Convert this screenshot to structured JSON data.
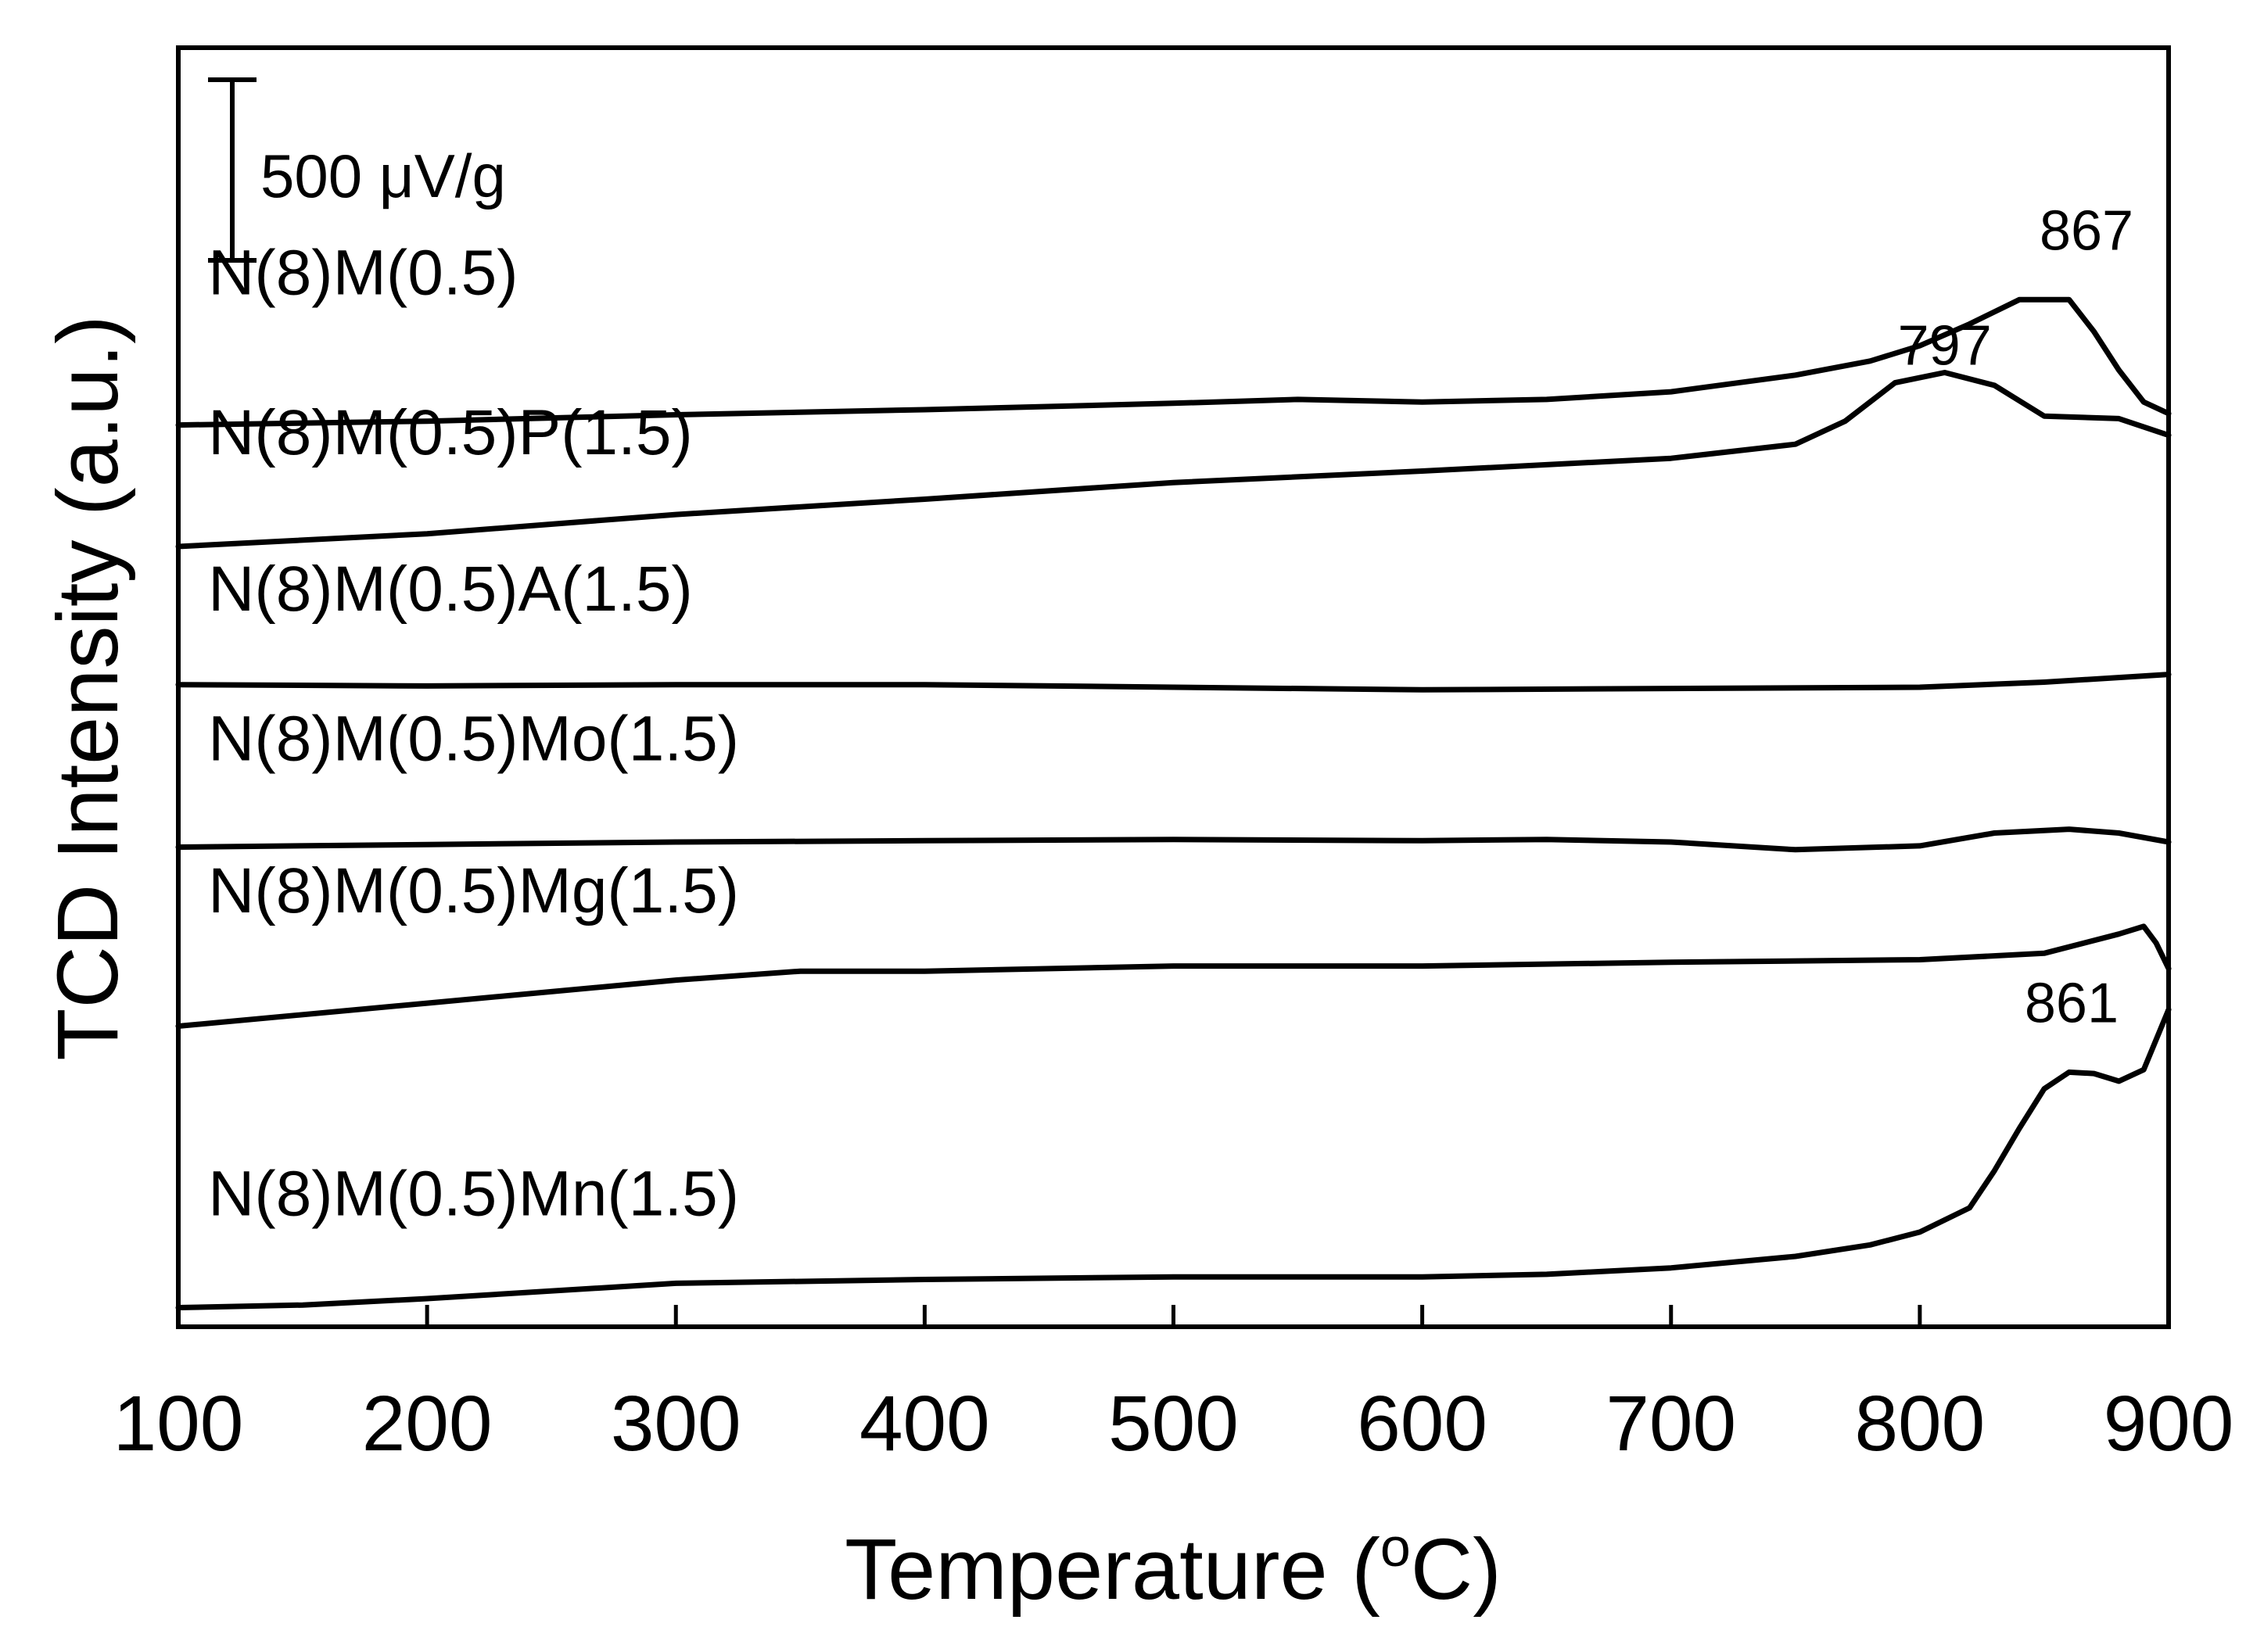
{
  "chart_data": {
    "type": "line",
    "title": "",
    "xlabel": "Temperature (",
    "xlabel_superscript": "o",
    "xlabel_suffix": "C)",
    "ylabel": "TCD Intensity (a.u.)",
    "xlim": [
      100,
      900
    ],
    "x_ticks": [
      100,
      200,
      300,
      400,
      500,
      600,
      700,
      800,
      900
    ],
    "x_tick_labels": [
      "100",
      "200",
      "300",
      "400",
      "500",
      "600",
      "700",
      "800",
      "900"
    ],
    "y_units": "relative offset units (stacked, a.u.)",
    "ylim": [
      0,
      100
    ],
    "grid": false,
    "scale_bar": {
      "label": "500 μV/g",
      "span_units": 14
    },
    "series": [
      {
        "name": "N(8)M(0.5)",
        "label_at": [
          112,
          80.7
        ],
        "x": [
          100,
          200,
          300,
          400,
          500,
          550,
          600,
          650,
          700,
          750,
          780,
          800,
          820,
          840,
          860,
          870,
          880,
          890,
          900
        ],
        "y": [
          70.5,
          70.8,
          71.3,
          71.7,
          72.2,
          72.5,
          72.3,
          72.5,
          73.1,
          74.4,
          75.5,
          76.7,
          78.4,
          80.3,
          80.3,
          77.8,
          74.8,
          72.3,
          71.4
        ]
      },
      {
        "name": "N(8)M(0.5)P(1.5)",
        "label_at": [
          112,
          68.2
        ],
        "x": [
          100,
          200,
          300,
          400,
          500,
          600,
          700,
          750,
          770,
          790,
          810,
          830,
          850,
          880,
          900
        ],
        "y": [
          61.0,
          62.0,
          63.5,
          64.7,
          66.0,
          66.9,
          67.9,
          69.0,
          70.8,
          73.8,
          74.6,
          73.6,
          71.2,
          71.0,
          69.7
        ]
      },
      {
        "name": "N(8)M(0.5)A(1.5)",
        "label_at": [
          112,
          56.0
        ],
        "x": [
          100,
          200,
          300,
          400,
          500,
          600,
          700,
          800,
          850,
          900
        ],
        "y": [
          50.2,
          50.1,
          50.2,
          50.2,
          50.0,
          49.8,
          49.9,
          50.0,
          50.4,
          51.0
        ]
      },
      {
        "name": "N(8)M(0.5)Mo(1.5)",
        "label_at": [
          112,
          44.3
        ],
        "x": [
          100,
          200,
          300,
          400,
          500,
          600,
          650,
          700,
          750,
          800,
          830,
          860,
          880,
          900
        ],
        "y": [
          37.5,
          37.7,
          37.9,
          38.0,
          38.1,
          38.0,
          38.1,
          37.9,
          37.3,
          37.6,
          38.6,
          38.9,
          38.6,
          37.9
        ]
      },
      {
        "name": "N(8)M(0.5)Mg(1.5)",
        "label_at": [
          112,
          32.4
        ],
        "x": [
          100,
          200,
          300,
          350,
          400,
          500,
          600,
          700,
          800,
          850,
          880,
          890,
          895,
          900
        ],
        "y": [
          23.5,
          25.3,
          27.1,
          27.8,
          27.8,
          28.2,
          28.2,
          28.5,
          28.7,
          29.2,
          30.7,
          31.3,
          30.0,
          28.0
        ]
      },
      {
        "name": "N(8)M(0.5)Mn(1.5)",
        "label_at": [
          112,
          8.7
        ],
        "x": [
          100,
          150,
          200,
          300,
          400,
          500,
          600,
          650,
          700,
          750,
          780,
          800,
          820,
          830,
          840,
          850,
          860,
          870,
          880,
          890,
          900
        ],
        "y": [
          1.5,
          1.7,
          2.2,
          3.4,
          3.7,
          3.9,
          3.9,
          4.1,
          4.6,
          5.5,
          6.4,
          7.4,
          9.3,
          12.2,
          15.5,
          18.6,
          19.9,
          19.8,
          19.2,
          20.1,
          24.8
        ]
      }
    ],
    "peak_annotations": [
      {
        "label": "867",
        "x": 867,
        "y": 84.2
      },
      {
        "label": "797",
        "x": 810,
        "y": 75.2
      },
      {
        "label": "861",
        "x": 861,
        "y": 23.8
      }
    ]
  }
}
